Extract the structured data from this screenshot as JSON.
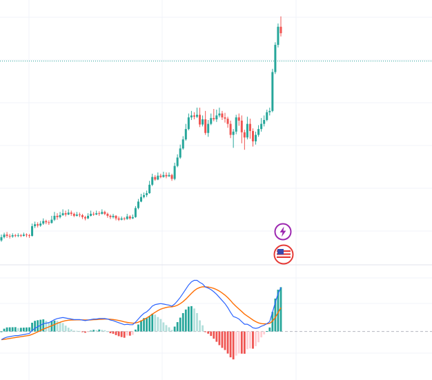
{
  "colors": {
    "up": "#26a69a",
    "down": "#ef5350",
    "hist_up_strong": "#26a69a",
    "hist_up_weak": "#b2dfdb",
    "hist_down_strong": "#ef5350",
    "hist_down_weak": "#ffcdd2",
    "macd_line": "#2962ff",
    "signal_line": "#ff6d00",
    "grid": "#f0f3fa",
    "price_line": "#26a69a",
    "zero_line": "#b2b5be",
    "event_icon": "#9c27b0",
    "flag_icon": "#e53935"
  },
  "icons": [
    "lightning-icon",
    "us-flag-icon"
  ],
  "chart_data": [
    {
      "type": "candlestick",
      "grid": true,
      "last_price_line": true,
      "candles": [
        [
          440,
          445,
          449,
          438
        ],
        [
          445,
          449,
          452,
          443
        ],
        [
          449,
          447,
          453,
          444
        ],
        [
          447,
          446,
          450,
          443
        ],
        [
          446,
          448,
          451,
          444
        ],
        [
          448,
          447,
          450,
          445
        ],
        [
          447,
          448,
          451,
          445
        ],
        [
          448,
          447,
          450,
          445
        ],
        [
          447,
          449,
          452,
          446
        ],
        [
          449,
          448,
          451,
          445
        ],
        [
          448,
          447,
          450,
          444
        ],
        [
          447,
          462,
          466,
          446
        ],
        [
          462,
          465,
          469,
          459
        ],
        [
          465,
          463,
          468,
          460
        ],
        [
          463,
          466,
          470,
          461
        ],
        [
          466,
          470,
          474,
          464
        ],
        [
          470,
          468,
          472,
          465
        ],
        [
          468,
          467,
          471,
          464
        ],
        [
          467,
          472,
          478,
          466
        ],
        [
          472,
          478,
          484,
          470
        ],
        [
          478,
          476,
          482,
          472
        ],
        [
          476,
          479,
          484,
          474
        ],
        [
          479,
          482,
          488,
          478
        ],
        [
          482,
          480,
          486,
          477
        ],
        [
          480,
          483,
          488,
          479
        ],
        [
          483,
          481,
          486,
          478
        ],
        [
          481,
          478,
          483,
          476
        ],
        [
          478,
          480,
          484,
          477
        ],
        [
          480,
          479,
          483,
          476
        ],
        [
          479,
          476,
          481,
          473
        ],
        [
          476,
          474,
          478,
          471
        ],
        [
          474,
          478,
          482,
          473
        ],
        [
          478,
          481,
          486,
          477
        ],
        [
          481,
          480,
          484,
          478
        ],
        [
          480,
          482,
          486,
          479
        ],
        [
          482,
          481,
          485,
          478
        ],
        [
          481,
          484,
          488,
          480
        ],
        [
          484,
          481,
          486,
          479
        ],
        [
          481,
          478,
          483,
          475
        ],
        [
          478,
          476,
          480,
          473
        ],
        [
          476,
          478,
          481,
          474
        ],
        [
          478,
          474,
          479,
          471
        ],
        [
          474,
          472,
          477,
          470
        ],
        [
          472,
          474,
          477,
          471
        ],
        [
          474,
          473,
          476,
          471
        ],
        [
          473,
          477,
          481,
          472
        ],
        [
          477,
          474,
          479,
          472
        ],
        [
          474,
          476,
          480,
          473
        ],
        [
          476,
          490,
          493,
          475
        ],
        [
          490,
          500,
          504,
          488
        ],
        [
          500,
          507,
          512,
          499
        ],
        [
          507,
          510,
          514,
          505
        ],
        [
          510,
          513,
          517,
          507
        ],
        [
          513,
          526,
          532,
          512
        ],
        [
          526,
          538,
          543,
          524
        ],
        [
          538,
          534,
          541,
          532
        ],
        [
          534,
          540,
          545,
          533
        ],
        [
          540,
          538,
          543,
          536
        ],
        [
          538,
          541,
          546,
          537
        ],
        [
          541,
          539,
          545,
          536
        ],
        [
          539,
          541,
          545,
          538
        ],
        [
          541,
          535,
          543,
          532
        ],
        [
          535,
          555,
          560,
          533
        ],
        [
          555,
          568,
          573,
          553
        ],
        [
          568,
          582,
          588,
          566
        ],
        [
          582,
          596,
          601,
          580
        ],
        [
          596,
          612,
          620,
          594
        ],
        [
          612,
          630,
          636,
          610
        ],
        [
          630,
          633,
          640,
          626
        ],
        [
          633,
          631,
          638,
          627
        ],
        [
          631,
          634,
          645,
          629
        ],
        [
          634,
          619,
          645,
          615
        ],
        [
          619,
          627,
          633,
          616
        ],
        [
          627,
          606,
          640,
          603
        ],
        [
          606,
          620,
          626,
          600
        ],
        [
          620,
          629,
          636,
          618
        ],
        [
          629,
          627,
          643,
          624
        ],
        [
          627,
          633,
          642,
          623
        ],
        [
          633,
          636,
          645,
          630
        ],
        [
          636,
          630,
          640,
          626
        ],
        [
          630,
          628,
          637,
          622
        ],
        [
          628,
          620,
          631,
          614
        ],
        [
          620,
          603,
          625,
          598
        ],
        [
          603,
          608,
          612,
          583
        ],
        [
          608,
          630,
          634,
          604
        ],
        [
          630,
          625,
          636,
          617
        ],
        [
          625,
          607,
          633,
          590
        ],
        [
          607,
          599,
          611,
          580
        ],
        [
          599,
          620,
          631,
          596
        ],
        [
          620,
          609,
          628,
          597
        ],
        [
          609,
          593,
          613,
          585
        ],
        [
          593,
          603,
          608,
          588
        ],
        [
          603,
          612,
          618,
          600
        ],
        [
          612,
          620,
          629,
          608
        ],
        [
          620,
          626,
          633,
          616
        ],
        [
          626,
          638,
          642,
          624
        ],
        [
          638,
          640,
          645,
          633
        ],
        [
          640,
          700,
          705,
          638
        ],
        [
          700,
          742,
          746,
          697
        ],
        [
          742,
          770,
          775,
          738
        ],
        [
          770,
          760,
          786,
          755
        ]
      ]
    },
    {
      "type": "macd",
      "baseline": 0,
      "grid": true,
      "macd": [
        -1.6,
        -1.3,
        -1.1,
        -1.0,
        -0.9,
        -0.8,
        -0.8,
        -0.7,
        -0.6,
        -0.5,
        -0.4,
        0.2,
        0.6,
        0.9,
        1.2,
        1.5,
        1.6,
        1.7,
        2.0,
        2.3,
        2.5,
        2.6,
        2.7,
        2.6,
        2.5,
        2.4,
        2.3,
        2.3,
        2.3,
        2.2,
        2.1,
        2.2,
        2.3,
        2.4,
        2.4,
        2.5,
        2.5,
        2.5,
        2.4,
        2.2,
        2.1,
        1.9,
        1.7,
        1.5,
        1.3,
        1.4,
        1.3,
        1.3,
        1.8,
        2.4,
        3.0,
        3.5,
        3.8,
        4.3,
        4.9,
        5.2,
        5.3,
        5.4,
        5.3,
        5.2,
        5.1,
        4.9,
        5.3,
        5.9,
        6.6,
        7.4,
        8.2,
        9.0,
        9.6,
        9.9,
        9.9,
        9.5,
        9.2,
        8.6,
        8.4,
        8.1,
        7.7,
        7.2,
        6.6,
        6.0,
        5.4,
        4.6,
        3.7,
        2.9,
        2.7,
        2.4,
        1.9,
        1.4,
        1.4,
        1.1,
        0.7,
        0.6,
        0.7,
        1.0,
        1.2,
        1.5,
        1.9,
        3.7,
        5.6,
        7.3,
        8.5
      ]
    }
  ]
}
